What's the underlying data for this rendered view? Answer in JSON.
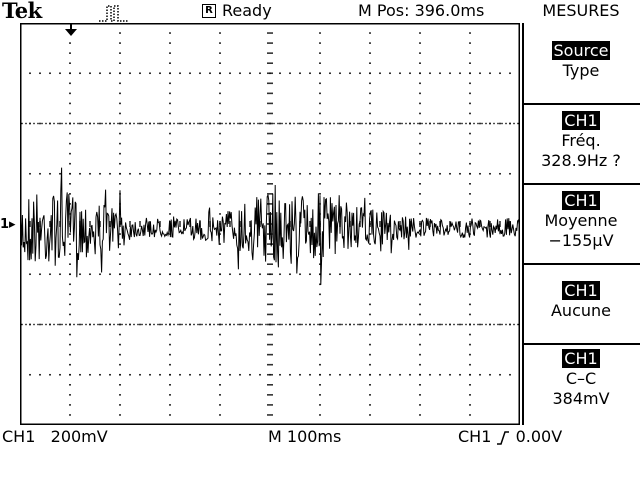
{
  "header": {
    "brand": "Tek",
    "acq_icon": "pulse-square-icon",
    "status_box": "R",
    "status": "Ready",
    "mpos": "M Pos: 396.0ms",
    "menu_title": "MESURES"
  },
  "screen": {
    "channel_marker": "1",
    "trigger_marker_icon": "trigger-position-arrow-icon",
    "waveform_color": "#000000",
    "grid_color": "#000000"
  },
  "menu": {
    "items": [
      {
        "badge": "Source",
        "line1": "Type",
        "line2": ""
      },
      {
        "badge": "CH1",
        "line1": "Fréq.",
        "line2": "328.9Hz ?"
      },
      {
        "badge": "CH1",
        "line1": "Moyenne",
        "line2": "−155μV"
      },
      {
        "badge": "CH1",
        "line1": "Aucune",
        "line2": ""
      },
      {
        "badge": "CH1",
        "line1": "C–C",
        "line2": "384mV"
      }
    ]
  },
  "footer": {
    "ch_scale": "CH1   200mV",
    "timebase": "M 100ms",
    "trigger_ch": "CH1",
    "trigger_edge_icon": "rising-edge-icon",
    "trigger_level": "0.00V"
  }
}
